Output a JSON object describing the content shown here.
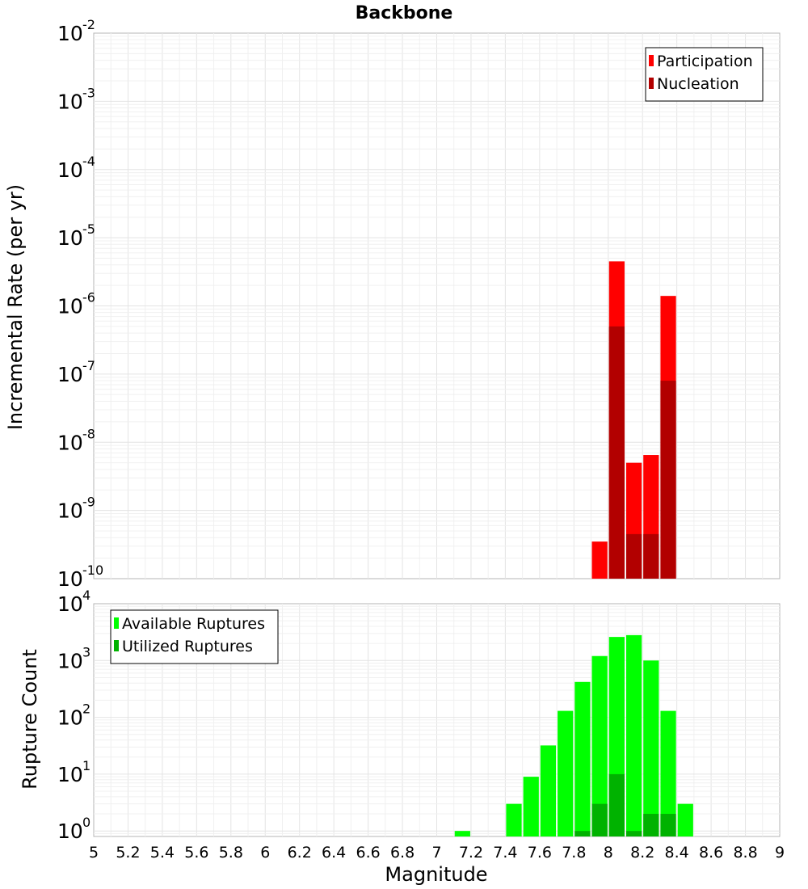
{
  "chart_data": [
    {
      "type": "bar",
      "title": "Backbone",
      "xlabel": "",
      "ylabel": "Incremental Rate (per yr)",
      "xlim": [
        5,
        9
      ],
      "ylim": [
        1e-10,
        0.01
      ],
      "yscale": "log",
      "grid": true,
      "legend_position": "top-right",
      "ytick_exponents": [
        -10,
        -9,
        -8,
        -7,
        -6,
        -5,
        -4,
        -3,
        -2
      ],
      "bin_width": 0.1,
      "series": [
        {
          "name": "Participation",
          "color": "#ff0000",
          "x": [
            7.95,
            8.05,
            8.15,
            8.25,
            8.35
          ],
          "values": [
            3.5e-10,
            4.5e-06,
            5e-09,
            6.5e-09,
            1.4e-06
          ]
        },
        {
          "name": "Nucleation",
          "color": "#b20000",
          "x": [
            8.05,
            8.15,
            8.25,
            8.35
          ],
          "values": [
            5e-07,
            4.5e-10,
            4.5e-10,
            8e-08
          ]
        }
      ]
    },
    {
      "type": "bar",
      "title": "",
      "xlabel": "Magnitude",
      "ylabel": "Rupture Count",
      "xlim": [
        5,
        9
      ],
      "ylim": [
        0.8,
        10000
      ],
      "yscale": "log",
      "grid": true,
      "legend_position": "top-left",
      "ytick_exponents": [
        0,
        1,
        2,
        3,
        4
      ],
      "xticks": [
        "5",
        "5.2",
        "5.4",
        "5.6",
        "5.8",
        "6",
        "6.2",
        "6.4",
        "6.6",
        "6.8",
        "7",
        "7.2",
        "7.4",
        "7.6",
        "7.8",
        "8",
        "8.2",
        "8.4",
        "8.6",
        "8.8",
        "9"
      ],
      "bin_width": 0.1,
      "series": [
        {
          "name": "Available Ruptures",
          "color": "#00ff00",
          "x": [
            7.15,
            7.45,
            7.55,
            7.65,
            7.75,
            7.85,
            7.95,
            8.05,
            8.15,
            8.25,
            8.35,
            8.45
          ],
          "values": [
            1,
            3,
            9,
            32,
            130,
            420,
            1200,
            2600,
            2800,
            1000,
            130,
            3
          ]
        },
        {
          "name": "Utilized Ruptures",
          "color": "#00b200",
          "x": [
            7.85,
            7.95,
            8.05,
            8.15,
            8.25,
            8.35
          ],
          "values": [
            1,
            3,
            10,
            1,
            2,
            2
          ]
        }
      ]
    }
  ]
}
